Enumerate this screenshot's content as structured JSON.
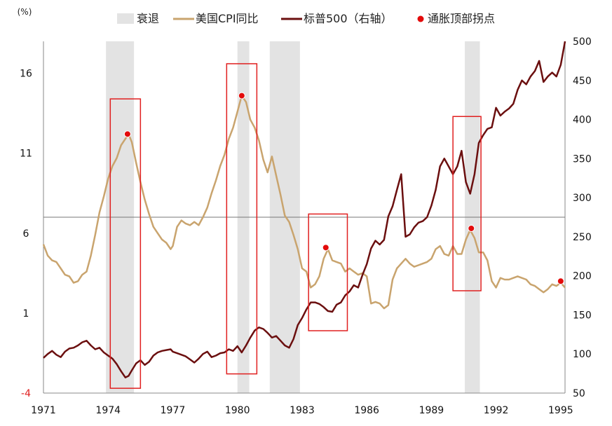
{
  "chart_data": {
    "type": "line",
    "left_axis_unit": "(%)",
    "x_ticks": [
      "1971",
      "1974",
      "1977",
      "1980",
      "1983",
      "1986",
      "1989",
      "1992",
      "1995"
    ],
    "xlim": [
      1971,
      1995.2
    ],
    "ylim_left": [
      -4,
      18
    ],
    "ylim_right": [
      50,
      500
    ],
    "y_ticks_left": [
      "-4",
      "1",
      "6",
      "11",
      "16"
    ],
    "y_ticks_right": [
      "50",
      "100",
      "150",
      "200",
      "250",
      "300",
      "350",
      "400",
      "450",
      "500"
    ],
    "legend": {
      "recession": "衰退",
      "cpi": "美国CPI同比",
      "sp500": "标普500（右轴）",
      "peak": "通胀顶部拐点"
    },
    "colors": {
      "recession": "#e3e3e3",
      "cpi": "#c9a46e",
      "sp500": "#6b0f0f",
      "peak": "#e30b0b",
      "box": "#e02020",
      "negative_tick": "#e02020",
      "axis": "#888888"
    },
    "recessions": [
      [
        1973.9,
        1975.2
      ],
      [
        1980.0,
        1980.55
      ],
      [
        1981.5,
        1982.9
      ],
      [
        1990.55,
        1991.25
      ]
    ],
    "highlight_boxes": [
      {
        "x": [
          1974.1,
          1975.5
        ],
        "y": [
          -3.7,
          14.4
        ]
      },
      {
        "x": [
          1979.5,
          1980.9
        ],
        "y": [
          -2.8,
          16.6
        ]
      },
      {
        "x": [
          1983.3,
          1985.1
        ],
        "y": [
          -0.1,
          7.2
        ]
      },
      {
        "x": [
          1990.0,
          1991.3
        ],
        "y": [
          2.4,
          13.3
        ]
      }
    ],
    "inflation_peaks": [
      {
        "x": 1974.9,
        "y": 12.2
      },
      {
        "x": 1980.2,
        "y": 14.6
      },
      {
        "x": 1984.1,
        "y": 5.1
      },
      {
        "x": 1990.85,
        "y": 6.3
      },
      {
        "x": 1995.0,
        "y": 3.0
      }
    ],
    "series": [
      {
        "name": "美国CPI同比",
        "axis": "left",
        "points": [
          [
            1971.0,
            5.3
          ],
          [
            1971.2,
            4.6
          ],
          [
            1971.4,
            4.3
          ],
          [
            1971.6,
            4.2
          ],
          [
            1971.8,
            3.8
          ],
          [
            1972.0,
            3.4
          ],
          [
            1972.2,
            3.3
          ],
          [
            1972.4,
            2.9
          ],
          [
            1972.6,
            3.0
          ],
          [
            1972.8,
            3.4
          ],
          [
            1973.0,
            3.6
          ],
          [
            1973.2,
            4.6
          ],
          [
            1973.4,
            5.9
          ],
          [
            1973.6,
            7.3
          ],
          [
            1973.8,
            8.3
          ],
          [
            1974.0,
            9.4
          ],
          [
            1974.2,
            10.2
          ],
          [
            1974.4,
            10.7
          ],
          [
            1974.6,
            11.5
          ],
          [
            1974.8,
            11.9
          ],
          [
            1974.95,
            12.2
          ],
          [
            1975.1,
            11.7
          ],
          [
            1975.3,
            10.4
          ],
          [
            1975.5,
            9.2
          ],
          [
            1975.7,
            8.1
          ],
          [
            1975.9,
            7.2
          ],
          [
            1976.1,
            6.4
          ],
          [
            1976.3,
            6.0
          ],
          [
            1976.5,
            5.6
          ],
          [
            1976.7,
            5.4
          ],
          [
            1976.9,
            5.0
          ],
          [
            1977.0,
            5.2
          ],
          [
            1977.2,
            6.4
          ],
          [
            1977.4,
            6.8
          ],
          [
            1977.6,
            6.6
          ],
          [
            1977.8,
            6.5
          ],
          [
            1978.0,
            6.7
          ],
          [
            1978.2,
            6.5
          ],
          [
            1978.4,
            7.0
          ],
          [
            1978.6,
            7.6
          ],
          [
            1978.8,
            8.5
          ],
          [
            1979.0,
            9.3
          ],
          [
            1979.2,
            10.2
          ],
          [
            1979.4,
            10.9
          ],
          [
            1979.6,
            11.9
          ],
          [
            1979.8,
            12.6
          ],
          [
            1980.0,
            13.6
          ],
          [
            1980.2,
            14.6
          ],
          [
            1980.4,
            14.2
          ],
          [
            1980.6,
            13.1
          ],
          [
            1980.8,
            12.6
          ],
          [
            1981.0,
            11.8
          ],
          [
            1981.2,
            10.6
          ],
          [
            1981.4,
            9.8
          ],
          [
            1981.6,
            10.8
          ],
          [
            1981.8,
            9.6
          ],
          [
            1982.0,
            8.4
          ],
          [
            1982.2,
            7.1
          ],
          [
            1982.4,
            6.7
          ],
          [
            1982.6,
            5.9
          ],
          [
            1982.8,
            5.0
          ],
          [
            1983.0,
            3.8
          ],
          [
            1983.2,
            3.6
          ],
          [
            1983.4,
            2.6
          ],
          [
            1983.6,
            2.8
          ],
          [
            1983.8,
            3.3
          ],
          [
            1984.0,
            4.4
          ],
          [
            1984.2,
            5.0
          ],
          [
            1984.4,
            4.3
          ],
          [
            1984.6,
            4.2
          ],
          [
            1984.8,
            4.1
          ],
          [
            1985.0,
            3.6
          ],
          [
            1985.2,
            3.8
          ],
          [
            1985.4,
            3.6
          ],
          [
            1985.6,
            3.4
          ],
          [
            1985.8,
            3.5
          ],
          [
            1986.0,
            3.3
          ],
          [
            1986.2,
            1.6
          ],
          [
            1986.4,
            1.7
          ],
          [
            1986.6,
            1.6
          ],
          [
            1986.8,
            1.3
          ],
          [
            1987.0,
            1.5
          ],
          [
            1987.2,
            3.1
          ],
          [
            1987.4,
            3.8
          ],
          [
            1987.6,
            4.1
          ],
          [
            1987.8,
            4.4
          ],
          [
            1988.0,
            4.1
          ],
          [
            1988.2,
            3.9
          ],
          [
            1988.4,
            4.0
          ],
          [
            1988.6,
            4.1
          ],
          [
            1988.8,
            4.2
          ],
          [
            1989.0,
            4.4
          ],
          [
            1989.2,
            5.0
          ],
          [
            1989.4,
            5.2
          ],
          [
            1989.6,
            4.7
          ],
          [
            1989.8,
            4.6
          ],
          [
            1990.0,
            5.2
          ],
          [
            1990.2,
            4.7
          ],
          [
            1990.4,
            4.7
          ],
          [
            1990.6,
            5.6
          ],
          [
            1990.8,
            6.2
          ],
          [
            1991.0,
            5.7
          ],
          [
            1991.2,
            4.8
          ],
          [
            1991.4,
            4.8
          ],
          [
            1991.6,
            4.3
          ],
          [
            1991.8,
            3.0
          ],
          [
            1992.0,
            2.6
          ],
          [
            1992.2,
            3.2
          ],
          [
            1992.4,
            3.1
          ],
          [
            1992.6,
            3.1
          ],
          [
            1992.8,
            3.2
          ],
          [
            1993.0,
            3.3
          ],
          [
            1993.2,
            3.2
          ],
          [
            1993.4,
            3.1
          ],
          [
            1993.6,
            2.8
          ],
          [
            1993.8,
            2.7
          ],
          [
            1994.0,
            2.5
          ],
          [
            1994.2,
            2.3
          ],
          [
            1994.4,
            2.5
          ],
          [
            1994.6,
            2.8
          ],
          [
            1994.8,
            2.7
          ],
          [
            1995.0,
            2.9
          ],
          [
            1995.2,
            2.6
          ]
        ]
      },
      {
        "name": "标普500（右轴）",
        "axis": "right",
        "points": [
          [
            1971.0,
            95
          ],
          [
            1971.2,
            100
          ],
          [
            1971.4,
            104
          ],
          [
            1971.6,
            99
          ],
          [
            1971.8,
            96
          ],
          [
            1972.0,
            103
          ],
          [
            1972.2,
            107
          ],
          [
            1972.4,
            108
          ],
          [
            1972.6,
            111
          ],
          [
            1972.8,
            115
          ],
          [
            1973.0,
            117
          ],
          [
            1973.2,
            111
          ],
          [
            1973.4,
            106
          ],
          [
            1973.6,
            108
          ],
          [
            1973.8,
            102
          ],
          [
            1974.0,
            98
          ],
          [
            1974.2,
            94
          ],
          [
            1974.4,
            87
          ],
          [
            1974.6,
            78
          ],
          [
            1974.8,
            70
          ],
          [
            1974.95,
            72
          ],
          [
            1975.1,
            79
          ],
          [
            1975.3,
            88
          ],
          [
            1975.5,
            92
          ],
          [
            1975.7,
            86
          ],
          [
            1975.9,
            90
          ],
          [
            1976.1,
            98
          ],
          [
            1976.3,
            102
          ],
          [
            1976.5,
            104
          ],
          [
            1976.7,
            105
          ],
          [
            1976.9,
            106
          ],
          [
            1977.0,
            103
          ],
          [
            1977.2,
            101
          ],
          [
            1977.4,
            99
          ],
          [
            1977.6,
            97
          ],
          [
            1977.8,
            93
          ],
          [
            1978.0,
            89
          ],
          [
            1978.2,
            94
          ],
          [
            1978.4,
            100
          ],
          [
            1978.6,
            103
          ],
          [
            1978.8,
            96
          ],
          [
            1979.0,
            98
          ],
          [
            1979.2,
            101
          ],
          [
            1979.4,
            102
          ],
          [
            1979.6,
            106
          ],
          [
            1979.8,
            104
          ],
          [
            1980.0,
            110
          ],
          [
            1980.2,
            102
          ],
          [
            1980.4,
            111
          ],
          [
            1980.6,
            121
          ],
          [
            1980.8,
            130
          ],
          [
            1981.0,
            134
          ],
          [
            1981.2,
            132
          ],
          [
            1981.4,
            127
          ],
          [
            1981.6,
            121
          ],
          [
            1981.8,
            123
          ],
          [
            1982.0,
            117
          ],
          [
            1982.2,
            111
          ],
          [
            1982.4,
            108
          ],
          [
            1982.6,
            119
          ],
          [
            1982.8,
            137
          ],
          [
            1983.0,
            146
          ],
          [
            1983.2,
            157
          ],
          [
            1983.4,
            166
          ],
          [
            1983.6,
            166
          ],
          [
            1983.8,
            164
          ],
          [
            1984.0,
            160
          ],
          [
            1984.2,
            155
          ],
          [
            1984.4,
            154
          ],
          [
            1984.6,
            163
          ],
          [
            1984.8,
            166
          ],
          [
            1985.0,
            175
          ],
          [
            1985.2,
            180
          ],
          [
            1985.4,
            188
          ],
          [
            1985.6,
            185
          ],
          [
            1985.8,
            201
          ],
          [
            1986.0,
            215
          ],
          [
            1986.2,
            235
          ],
          [
            1986.4,
            245
          ],
          [
            1986.6,
            240
          ],
          [
            1986.8,
            246
          ],
          [
            1987.0,
            276
          ],
          [
            1987.2,
            289
          ],
          [
            1987.4,
            310
          ],
          [
            1987.6,
            330
          ],
          [
            1987.8,
            250
          ],
          [
            1988.0,
            253
          ],
          [
            1988.2,
            262
          ],
          [
            1988.4,
            268
          ],
          [
            1988.6,
            270
          ],
          [
            1988.8,
            275
          ],
          [
            1989.0,
            290
          ],
          [
            1989.2,
            310
          ],
          [
            1989.4,
            340
          ],
          [
            1989.6,
            350
          ],
          [
            1989.8,
            340
          ],
          [
            1990.0,
            330
          ],
          [
            1990.2,
            340
          ],
          [
            1990.4,
            360
          ],
          [
            1990.6,
            320
          ],
          [
            1990.8,
            305
          ],
          [
            1991.0,
            330
          ],
          [
            1991.2,
            370
          ],
          [
            1991.4,
            380
          ],
          [
            1991.6,
            388
          ],
          [
            1991.8,
            390
          ],
          [
            1992.0,
            415
          ],
          [
            1992.2,
            405
          ],
          [
            1992.4,
            410
          ],
          [
            1992.6,
            414
          ],
          [
            1992.8,
            420
          ],
          [
            1993.0,
            438
          ],
          [
            1993.2,
            450
          ],
          [
            1993.4,
            445
          ],
          [
            1993.6,
            455
          ],
          [
            1993.8,
            462
          ],
          [
            1994.0,
            475
          ],
          [
            1994.2,
            448
          ],
          [
            1994.4,
            455
          ],
          [
            1994.6,
            460
          ],
          [
            1994.8,
            455
          ],
          [
            1995.0,
            470
          ],
          [
            1995.2,
            500
          ]
        ]
      }
    ]
  }
}
